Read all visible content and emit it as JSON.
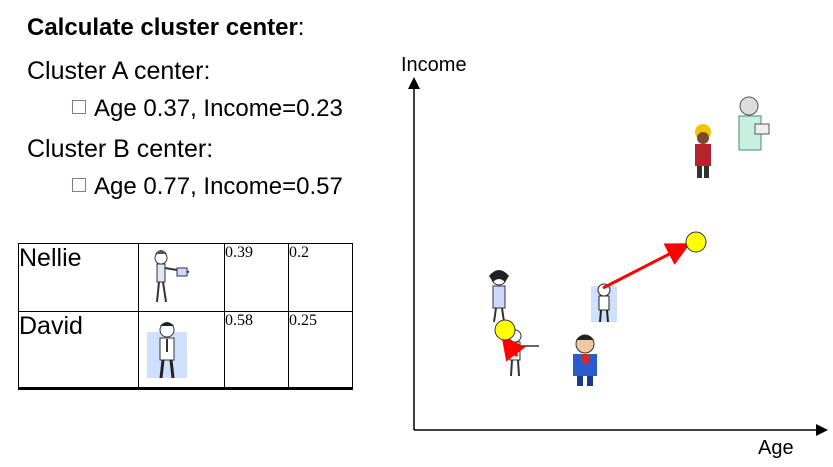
{
  "slide": {
    "heading_bold": "Calculate cluster center",
    "heading_colon": ":",
    "cluster_a_label": "Cluster A center:",
    "cluster_a_value": "Age 0.37, Income=0.23",
    "cluster_b_label": "Cluster B center:",
    "cluster_b_value": "Age 0.77, Income=0.57"
  },
  "table": {
    "rows": [
      {
        "name": "Nellie",
        "age": "0.39",
        "income": "0.2",
        "icon": "woman-figure-icon"
      },
      {
        "name": "David",
        "age": "0.58",
        "income": "0.25",
        "icon": "man-figure-icon"
      }
    ]
  },
  "plot": {
    "y_axis_label": "Income",
    "x_axis_label": "Age",
    "center_color": "#ffff00",
    "arrow_color": "#ff0000",
    "icons": [
      "worker-icon",
      "nurse-icon",
      "woman-icon",
      "boy-icon",
      "man-pointing-icon",
      "man-icon"
    ]
  }
}
